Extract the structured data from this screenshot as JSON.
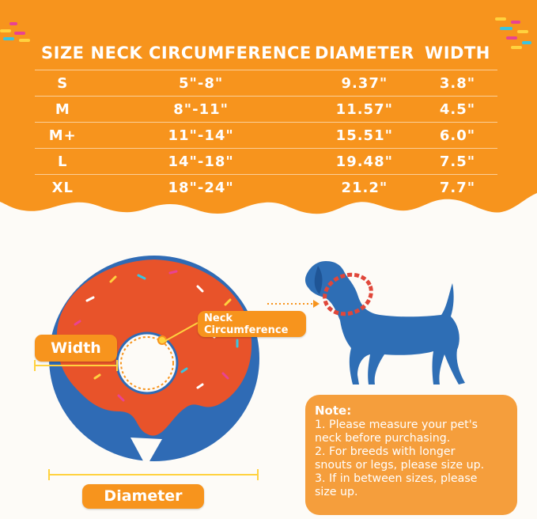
{
  "size_table": {
    "headers": [
      "SIZE",
      "NECK CIRCUMFERENCE",
      "DIAMETER",
      "WIDTH"
    ],
    "rows": [
      {
        "size": "S",
        "neck": "5\"-8\"",
        "diameter": "9.37\"",
        "width": "3.8\""
      },
      {
        "size": "M",
        "neck": "8\"-11\"",
        "diameter": "11.57\"",
        "width": "4.5\""
      },
      {
        "size": "M+",
        "neck": "11\"-14\"",
        "diameter": "15.51\"",
        "width": "6.0\""
      },
      {
        "size": "L",
        "neck": "14\"-18\"",
        "diameter": "19.48\"",
        "width": "7.5\""
      },
      {
        "size": "XL",
        "neck": "18\"-24\"",
        "diameter": "21.2\"",
        "width": "7.7\""
      }
    ]
  },
  "labels": {
    "width": "Width",
    "neck_line1": "Neck",
    "neck_line2": "Circumference",
    "diameter": "Diameter"
  },
  "note": {
    "title": "Note:",
    "lines": [
      "1. Please measure your pet's",
      "neck before purchasing.",
      "2. For breeds with longer",
      "snouts or legs, please size up.",
      "3. If in between sizes, please",
      "size up."
    ]
  },
  "colors": {
    "orange": "#f7941d",
    "donut_blue": "#2f6bb5",
    "frosting_red": "#e8532a",
    "dog_blue": "#2e6eb5",
    "collar_red": "#e0473a",
    "background": "#fdfbf7"
  },
  "icons": [
    "donut-cone-illustration",
    "dog-silhouette-icon",
    "sprinkles-decoration"
  ]
}
